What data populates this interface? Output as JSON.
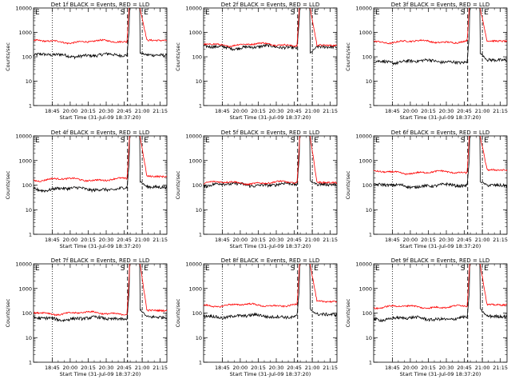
{
  "figure": {
    "xlabel": "Start Time (31-Jul-09 18:37:20)",
    "ylabel": "Counts/sec",
    "x_ticks": [
      "18:45",
      "20:00",
      "20:15",
      "20:30",
      "20:45",
      "21:00",
      "21:15"
    ],
    "y_ticks": [
      "1",
      "10",
      "100",
      "1000",
      "10000"
    ],
    "marker_labels": [
      "E",
      "S",
      "E"
    ]
  },
  "chart_data": [
    {
      "type": "line",
      "title": "Det 1f BLACK = Events, RED = LLD",
      "series": [
        {
          "legend": "BLACK = Events",
          "color": "#000000",
          "pre": 115,
          "post": 120
        },
        {
          "legend": "RED = LLD",
          "color": "#ff0000",
          "pre": 420,
          "post": 480
        }
      ],
      "xlim": [
        0,
        1
      ],
      "ylim": [
        1,
        10000
      ],
      "log_y": true,
      "marker_fractions": {
        "dotted": 0.14,
        "dashed_S": 0.705,
        "dashdot_E": 0.815
      }
    },
    {
      "type": "line",
      "title": "Det 2f BLACK = Events, RED = LLD",
      "series": [
        {
          "legend": "BLACK = Events",
          "color": "#000000",
          "pre": 250,
          "post": 260
        },
        {
          "legend": "RED = LLD",
          "color": "#ff0000",
          "pre": 320,
          "post": 300
        }
      ],
      "xlim": [
        0,
        1
      ],
      "ylim": [
        1,
        10000
      ],
      "log_y": true,
      "marker_fractions": {
        "dotted": 0.14,
        "dashed_S": 0.705,
        "dashdot_E": 0.815
      }
    },
    {
      "type": "line",
      "title": "Det 3f BLACK = Events, RED = LLD",
      "series": [
        {
          "legend": "BLACK = Events",
          "color": "#000000",
          "pre": 65,
          "post": 75
        },
        {
          "legend": "RED = LLD",
          "color": "#ff0000",
          "pre": 420,
          "post": 450
        }
      ],
      "xlim": [
        0,
        1
      ],
      "ylim": [
        1,
        10000
      ],
      "log_y": true,
      "marker_fractions": {
        "dotted": 0.14,
        "dashed_S": 0.705,
        "dashdot_E": 0.815
      }
    },
    {
      "type": "line",
      "title": "Det 4f BLACK = Events, RED = LLD",
      "series": [
        {
          "legend": "BLACK = Events",
          "color": "#000000",
          "pre": 70,
          "post": 85
        },
        {
          "legend": "RED = LLD",
          "color": "#ff0000",
          "pre": 170,
          "post": 230
        }
      ],
      "xlim": [
        0,
        1
      ],
      "ylim": [
        1,
        10000
      ],
      "log_y": true,
      "marker_fractions": {
        "dotted": 0.14,
        "dashed_S": 0.705,
        "dashdot_E": 0.815
      }
    },
    {
      "type": "line",
      "title": "Det 5f BLACK = Events, RED = LLD",
      "series": [
        {
          "legend": "BLACK = Events",
          "color": "#000000",
          "pre": 105,
          "post": 110
        },
        {
          "legend": "RED = LLD",
          "color": "#ff0000",
          "pre": 125,
          "post": 130
        }
      ],
      "xlim": [
        0,
        1
      ],
      "ylim": [
        1,
        10000
      ],
      "log_y": true,
      "marker_fractions": {
        "dotted": 0.14,
        "dashed_S": 0.705,
        "dashdot_E": 0.815
      }
    },
    {
      "type": "line",
      "title": "Det 6f BLACK = Events, RED = LLD",
      "series": [
        {
          "legend": "BLACK = Events",
          "color": "#000000",
          "pre": 95,
          "post": 100
        },
        {
          "legend": "RED = LLD",
          "color": "#ff0000",
          "pre": 330,
          "post": 420
        }
      ],
      "xlim": [
        0,
        1
      ],
      "ylim": [
        1,
        10000
      ],
      "log_y": true,
      "marker_fractions": {
        "dotted": 0.14,
        "dashed_S": 0.705,
        "dashdot_E": 0.815
      }
    },
    {
      "type": "line",
      "title": "Det 7f BLACK = Events, RED = LLD",
      "series": [
        {
          "legend": "BLACK = Events",
          "color": "#000000",
          "pre": 60,
          "post": 70
        },
        {
          "legend": "RED = LLD",
          "color": "#ff0000",
          "pre": 100,
          "post": 130
        }
      ],
      "xlim": [
        0,
        1
      ],
      "ylim": [
        1,
        10000
      ],
      "log_y": true,
      "marker_fractions": {
        "dotted": 0.14,
        "dashed_S": 0.705,
        "dashdot_E": 0.815
      }
    },
    {
      "type": "line",
      "title": "Det 8f BLACK = Events, RED = LLD",
      "series": [
        {
          "legend": "BLACK = Events",
          "color": "#000000",
          "pre": 75,
          "post": 90
        },
        {
          "legend": "RED = LLD",
          "color": "#ff0000",
          "pre": 210,
          "post": 300
        }
      ],
      "xlim": [
        0,
        1
      ],
      "ylim": [
        1,
        10000
      ],
      "log_y": true,
      "marker_fractions": {
        "dotted": 0.14,
        "dashed_S": 0.705,
        "dashdot_E": 0.815
      }
    },
    {
      "type": "line",
      "title": "Det 9f BLACK = Events, RED = LLD",
      "series": [
        {
          "legend": "BLACK = Events",
          "color": "#000000",
          "pre": 60,
          "post": 75
        },
        {
          "legend": "RED = LLD",
          "color": "#ff0000",
          "pre": 180,
          "post": 220
        }
      ],
      "xlim": [
        0,
        1
      ],
      "ylim": [
        1,
        10000
      ],
      "log_y": true,
      "marker_fractions": {
        "dotted": 0.14,
        "dashed_S": 0.705,
        "dashdot_E": 0.815
      }
    }
  ]
}
